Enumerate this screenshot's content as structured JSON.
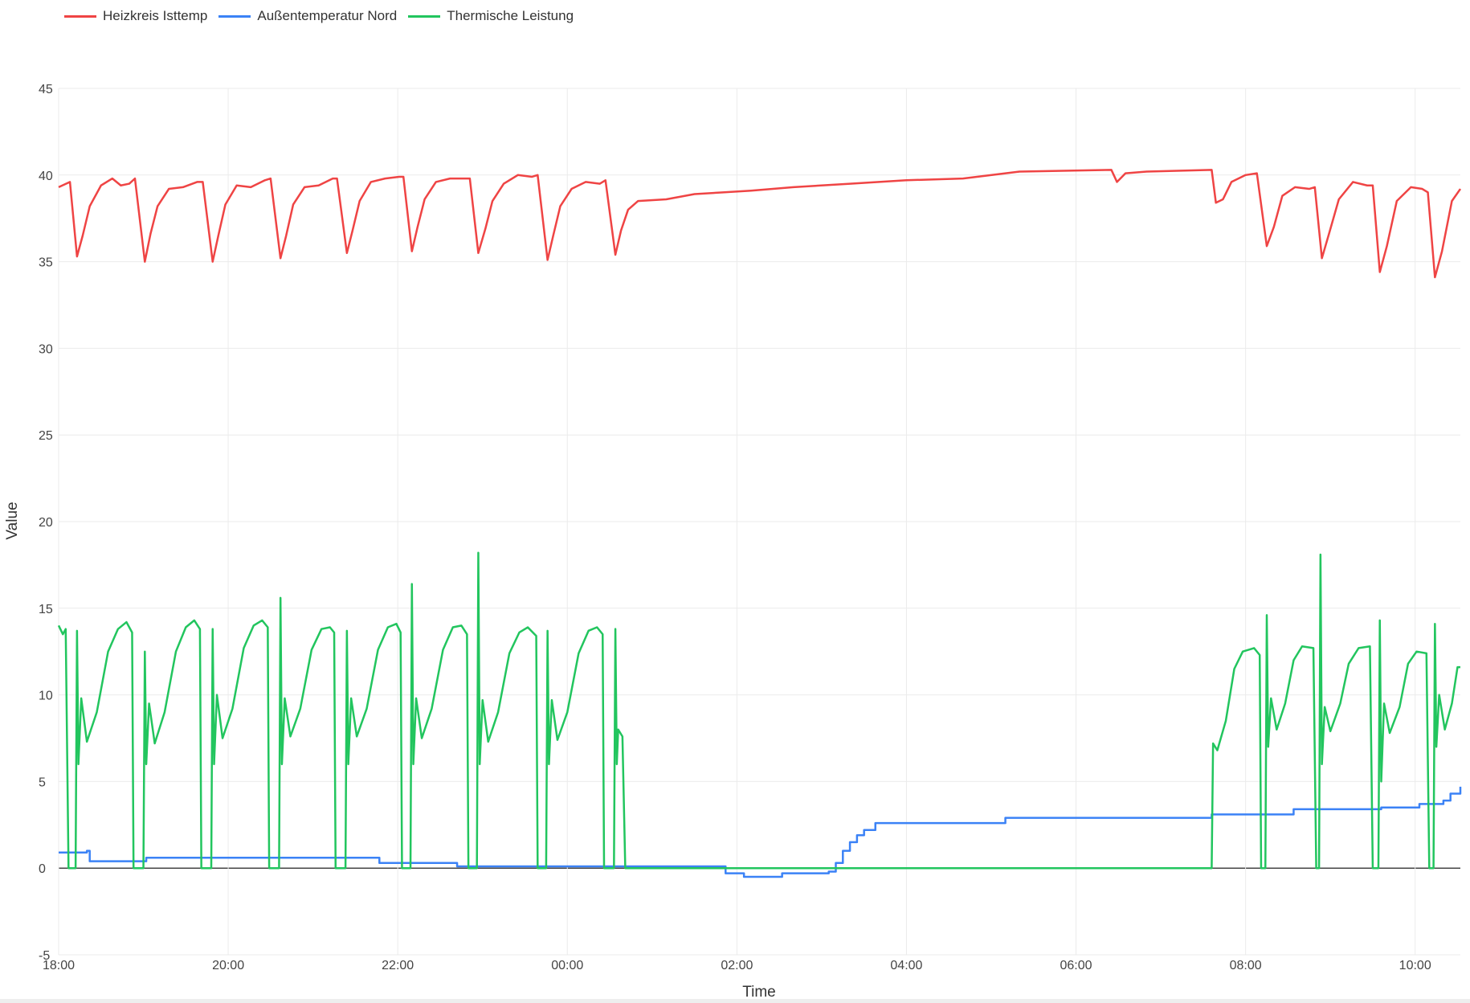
{
  "chart_data": {
    "type": "line",
    "title": "",
    "xlabel": "Time",
    "ylabel": "Value",
    "x_unit": "minutes since 18:00",
    "xlim": [
      0,
      992
    ],
    "ylim": [
      -5,
      45
    ],
    "yticks": [
      -5,
      0,
      5,
      10,
      15,
      20,
      25,
      30,
      35,
      40,
      45
    ],
    "xticks": [
      {
        "value": 0,
        "label": "18:00"
      },
      {
        "value": 120,
        "label": "20:00"
      },
      {
        "value": 240,
        "label": "22:00"
      },
      {
        "value": 360,
        "label": "00:00"
      },
      {
        "value": 480,
        "label": "02:00"
      },
      {
        "value": 600,
        "label": "04:00"
      },
      {
        "value": 720,
        "label": "06:00"
      },
      {
        "value": 840,
        "label": "08:00"
      },
      {
        "value": 960,
        "label": "10:00"
      }
    ],
    "grid": true,
    "legend_position": "top-left",
    "series": [
      {
        "name": "Heizkreis Isttemp",
        "color": "#ef4444",
        "shape": "linear",
        "points": [
          [
            0,
            39.3
          ],
          [
            8,
            39.6
          ],
          [
            13,
            35.3
          ],
          [
            17,
            36.5
          ],
          [
            22,
            38.2
          ],
          [
            30,
            39.4
          ],
          [
            38,
            39.8
          ],
          [
            44,
            39.4
          ],
          [
            50,
            39.5
          ],
          [
            54,
            39.8
          ],
          [
            61,
            35.0
          ],
          [
            65,
            36.6
          ],
          [
            70,
            38.2
          ],
          [
            78,
            39.2
          ],
          [
            88,
            39.3
          ],
          [
            98,
            39.6
          ],
          [
            102,
            39.6
          ],
          [
            109,
            35.0
          ],
          [
            113,
            36.5
          ],
          [
            118,
            38.3
          ],
          [
            126,
            39.4
          ],
          [
            136,
            39.3
          ],
          [
            146,
            39.7
          ],
          [
            150,
            39.8
          ],
          [
            157,
            35.2
          ],
          [
            161,
            36.5
          ],
          [
            166,
            38.3
          ],
          [
            174,
            39.3
          ],
          [
            184,
            39.4
          ],
          [
            194,
            39.8
          ],
          [
            197,
            39.8
          ],
          [
            204,
            35.5
          ],
          [
            208,
            36.8
          ],
          [
            213,
            38.5
          ],
          [
            221,
            39.6
          ],
          [
            231,
            39.8
          ],
          [
            241,
            39.9
          ],
          [
            244,
            39.9
          ],
          [
            250,
            35.6
          ],
          [
            254,
            37.0
          ],
          [
            259,
            38.6
          ],
          [
            267,
            39.6
          ],
          [
            277,
            39.8
          ],
          [
            287,
            39.8
          ],
          [
            291,
            39.8
          ],
          [
            297,
            35.5
          ],
          [
            302,
            36.9
          ],
          [
            307,
            38.5
          ],
          [
            315,
            39.5
          ],
          [
            325,
            40.0
          ],
          [
            335,
            39.9
          ],
          [
            339,
            40.0
          ],
          [
            346,
            35.1
          ],
          [
            350,
            36.5
          ],
          [
            355,
            38.2
          ],
          [
            363,
            39.2
          ],
          [
            373,
            39.6
          ],
          [
            383,
            39.5
          ],
          [
            387,
            39.7
          ],
          [
            394,
            35.4
          ],
          [
            398,
            36.8
          ],
          [
            403,
            38.0
          ],
          [
            410,
            38.5
          ],
          [
            430,
            38.6
          ],
          [
            450,
            38.9
          ],
          [
            470,
            39.0
          ],
          [
            490,
            39.1
          ],
          [
            520,
            39.3
          ],
          [
            560,
            39.5
          ],
          [
            600,
            39.7
          ],
          [
            640,
            39.8
          ],
          [
            680,
            40.2
          ],
          [
            745,
            40.3
          ],
          [
            749,
            39.6
          ],
          [
            755,
            40.1
          ],
          [
            770,
            40.2
          ],
          [
            816,
            40.3
          ],
          [
            819,
            38.4
          ],
          [
            824,
            38.6
          ],
          [
            830,
            39.6
          ],
          [
            840,
            40.0
          ],
          [
            848,
            40.1
          ],
          [
            855,
            35.9
          ],
          [
            860,
            37.0
          ],
          [
            866,
            38.8
          ],
          [
            875,
            39.3
          ],
          [
            885,
            39.2
          ],
          [
            889,
            39.3
          ],
          [
            894,
            35.2
          ],
          [
            899,
            36.6
          ],
          [
            906,
            38.6
          ],
          [
            916,
            39.6
          ],
          [
            926,
            39.4
          ],
          [
            930,
            39.4
          ],
          [
            935,
            34.4
          ],
          [
            940,
            35.9
          ],
          [
            947,
            38.5
          ],
          [
            957,
            39.3
          ],
          [
            965,
            39.2
          ],
          [
            969,
            39.0
          ],
          [
            974,
            34.1
          ],
          [
            979,
            35.6
          ],
          [
            986,
            38.5
          ],
          [
            992,
            39.2
          ]
        ]
      },
      {
        "name": "Außentemperatur Nord",
        "color": "#3b82f6",
        "shape": "hv",
        "points": [
          [
            0,
            0.9
          ],
          [
            20,
            1.0
          ],
          [
            22,
            0.4
          ],
          [
            60,
            0.4
          ],
          [
            62,
            0.6
          ],
          [
            225,
            0.6
          ],
          [
            227,
            0.3
          ],
          [
            280,
            0.3
          ],
          [
            282,
            0.1
          ],
          [
            470,
            0.1
          ],
          [
            472,
            -0.3
          ],
          [
            485,
            -0.5
          ],
          [
            510,
            -0.5
          ],
          [
            512,
            -0.3
          ],
          [
            545,
            -0.2
          ],
          [
            550,
            0.3
          ],
          [
            555,
            1.0
          ],
          [
            560,
            1.5
          ],
          [
            565,
            1.9
          ],
          [
            570,
            2.2
          ],
          [
            578,
            2.6
          ],
          [
            668,
            2.6
          ],
          [
            670,
            2.9
          ],
          [
            814,
            2.9
          ],
          [
            816,
            3.1
          ],
          [
            872,
            3.1
          ],
          [
            874,
            3.4
          ],
          [
            934,
            3.4
          ],
          [
            936,
            3.5
          ],
          [
            960,
            3.5
          ],
          [
            963,
            3.7
          ],
          [
            980,
            3.9
          ],
          [
            985,
            4.3
          ],
          [
            992,
            4.7
          ]
        ]
      },
      {
        "name": "Thermische Leistung",
        "color": "#22c55e",
        "shape": "linear",
        "points": [
          [
            0,
            14
          ],
          [
            3,
            13.5
          ],
          [
            5,
            13.8
          ],
          [
            7,
            0
          ],
          [
            12,
            0
          ],
          [
            13,
            13.7
          ],
          [
            14,
            6
          ],
          [
            16,
            9.8
          ],
          [
            20,
            7.3
          ],
          [
            27,
            9
          ],
          [
            35,
            12.5
          ],
          [
            42,
            13.8
          ],
          [
            48,
            14.2
          ],
          [
            52,
            13.6
          ],
          [
            53,
            0
          ],
          [
            60,
            0
          ],
          [
            61,
            12.5
          ],
          [
            62,
            6
          ],
          [
            64,
            9.5
          ],
          [
            68,
            7.2
          ],
          [
            75,
            9
          ],
          [
            83,
            12.5
          ],
          [
            90,
            13.9
          ],
          [
            96,
            14.3
          ],
          [
            100,
            13.8
          ],
          [
            101,
            0
          ],
          [
            108,
            0
          ],
          [
            109,
            13.8
          ],
          [
            110,
            6
          ],
          [
            112,
            10
          ],
          [
            116,
            7.5
          ],
          [
            123,
            9.2
          ],
          [
            131,
            12.7
          ],
          [
            138,
            14
          ],
          [
            144,
            14.3
          ],
          [
            148,
            13.9
          ],
          [
            149,
            0
          ],
          [
            156,
            0
          ],
          [
            157,
            15.6
          ],
          [
            158,
            6
          ],
          [
            160,
            9.8
          ],
          [
            164,
            7.6
          ],
          [
            171,
            9.2
          ],
          [
            179,
            12.6
          ],
          [
            186,
            13.8
          ],
          [
            192,
            13.9
          ],
          [
            195,
            13.6
          ],
          [
            196,
            0
          ],
          [
            203,
            0
          ],
          [
            204,
            13.7
          ],
          [
            205,
            6
          ],
          [
            207,
            9.8
          ],
          [
            211,
            7.6
          ],
          [
            218,
            9.2
          ],
          [
            226,
            12.6
          ],
          [
            233,
            13.9
          ],
          [
            239,
            14.1
          ],
          [
            242,
            13.6
          ],
          [
            243,
            0
          ],
          [
            249,
            0
          ],
          [
            250,
            16.4
          ],
          [
            251,
            6
          ],
          [
            253,
            9.8
          ],
          [
            257,
            7.5
          ],
          [
            264,
            9.2
          ],
          [
            272,
            12.6
          ],
          [
            279,
            13.9
          ],
          [
            285,
            14
          ],
          [
            289,
            13.5
          ],
          [
            290,
            0
          ],
          [
            296,
            0
          ],
          [
            297,
            18.2
          ],
          [
            298,
            6
          ],
          [
            300,
            9.7
          ],
          [
            304,
            7.3
          ],
          [
            311,
            9
          ],
          [
            319,
            12.4
          ],
          [
            326,
            13.6
          ],
          [
            332,
            13.9
          ],
          [
            338,
            13.4
          ],
          [
            339,
            0
          ],
          [
            345,
            0
          ],
          [
            346,
            13.7
          ],
          [
            347,
            6
          ],
          [
            349,
            9.7
          ],
          [
            353,
            7.4
          ],
          [
            360,
            9
          ],
          [
            368,
            12.4
          ],
          [
            375,
            13.7
          ],
          [
            381,
            13.9
          ],
          [
            385,
            13.5
          ],
          [
            386,
            0
          ],
          [
            393,
            0
          ],
          [
            394,
            13.8
          ],
          [
            395,
            6
          ],
          [
            396,
            8
          ],
          [
            399,
            7.6
          ],
          [
            401,
            0
          ],
          [
            816,
            0
          ],
          [
            817,
            7.2
          ],
          [
            820,
            6.8
          ],
          [
            826,
            8.5
          ],
          [
            832,
            11.5
          ],
          [
            838,
            12.5
          ],
          [
            846,
            12.7
          ],
          [
            850,
            12.3
          ],
          [
            851,
            0
          ],
          [
            854,
            0
          ],
          [
            855,
            14.6
          ],
          [
            856,
            7
          ],
          [
            858,
            9.8
          ],
          [
            862,
            8
          ],
          [
            868,
            9.5
          ],
          [
            874,
            12
          ],
          [
            880,
            12.8
          ],
          [
            888,
            12.7
          ],
          [
            890,
            0
          ],
          [
            892,
            0
          ],
          [
            893,
            18.1
          ],
          [
            894,
            6
          ],
          [
            896,
            9.3
          ],
          [
            900,
            7.9
          ],
          [
            907,
            9.5
          ],
          [
            913,
            11.8
          ],
          [
            920,
            12.7
          ],
          [
            928,
            12.8
          ],
          [
            930,
            0
          ],
          [
            934,
            0
          ],
          [
            935,
            14.3
          ],
          [
            936,
            5
          ],
          [
            938,
            9.5
          ],
          [
            942,
            7.8
          ],
          [
            949,
            9.3
          ],
          [
            955,
            11.8
          ],
          [
            961,
            12.5
          ],
          [
            968,
            12.4
          ],
          [
            970,
            0
          ],
          [
            973,
            0
          ],
          [
            974,
            14.1
          ],
          [
            975,
            7
          ],
          [
            977,
            10
          ],
          [
            981,
            8
          ],
          [
            986,
            9.5
          ],
          [
            990,
            11.6
          ],
          [
            992,
            11.6
          ]
        ]
      }
    ]
  }
}
